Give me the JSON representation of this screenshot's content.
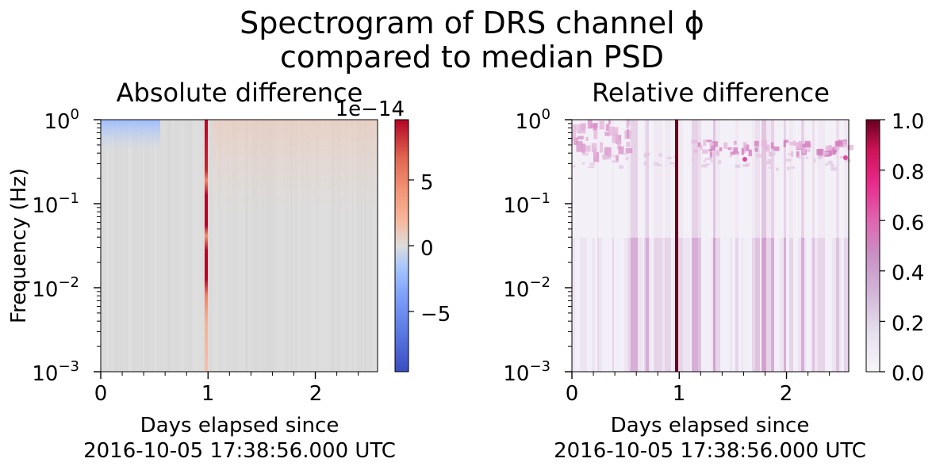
{
  "figure": {
    "title_line1": "Spectrogram of DRS channel ϕ",
    "title_line2": "compared to median PSD"
  },
  "chart_data": [
    {
      "type": "heatmap",
      "title": "Absolute difference",
      "ylabel": "Frequency (Hz)",
      "xlabel_line1": "Days elapsed since",
      "xlabel_line2": "2016-10-05 17:38:56.000 UTC",
      "x_range": [
        0,
        2.58
      ],
      "y_range": [
        0.001,
        1
      ],
      "y_scale": "log",
      "x_ticks": [
        "0",
        "1",
        "2"
      ],
      "y_ticks": [
        {
          "base": "10",
          "exp": "0"
        },
        {
          "base": "10",
          "exp": "−1"
        },
        {
          "base": "10",
          "exp": "−2"
        },
        {
          "base": "10",
          "exp": "−3"
        }
      ],
      "colormap": "coolwarm",
      "colorbar_range": [
        -9.5e-14,
        9.5e-14
      ],
      "colorbar_ticks": [
        "−5",
        "0",
        "5"
      ],
      "colorbar_offset": "1e−14",
      "features": [
        {
          "kind": "vertical-line",
          "x_day": 0.98,
          "value": "max"
        },
        {
          "kind": "band",
          "description_values": "slightly negative",
          "x_range": [
            0,
            0.5
          ],
          "y_range": [
            0.6,
            1
          ]
        },
        {
          "kind": "band",
          "description_values": "slightly positive",
          "x_range": [
            1.05,
            2.58
          ],
          "y_range": [
            0.3,
            1
          ]
        }
      ]
    },
    {
      "type": "heatmap",
      "title": "Relative difference",
      "xlabel_line1": "Days elapsed since",
      "xlabel_line2": "2016-10-05 17:38:56.000 UTC",
      "x_range": [
        0,
        2.58
      ],
      "y_range": [
        0.001,
        1
      ],
      "y_scale": "log",
      "x_ticks": [
        "0",
        "1",
        "2"
      ],
      "y_ticks": [
        {
          "base": "10",
          "exp": "0"
        },
        {
          "base": "10",
          "exp": "−1"
        },
        {
          "base": "10",
          "exp": "−2"
        },
        {
          "base": "10",
          "exp": "−3"
        }
      ],
      "colormap": "PuRd",
      "colorbar_range": [
        0,
        1
      ],
      "colorbar_ticks": [
        "0.0",
        "0.2",
        "0.4",
        "0.6",
        "0.8",
        "1.0"
      ],
      "features": [
        {
          "kind": "vertical-line",
          "x_day": 0.97,
          "value": 1.0
        },
        {
          "kind": "band",
          "x_range": [
            1.1,
            2.58
          ],
          "y_range": [
            0.38,
            0.55
          ],
          "value": 0.45
        },
        {
          "kind": "band",
          "x_range": [
            0,
            0.5
          ],
          "y_range": [
            0.5,
            1
          ],
          "value": 0.35
        }
      ]
    }
  ]
}
